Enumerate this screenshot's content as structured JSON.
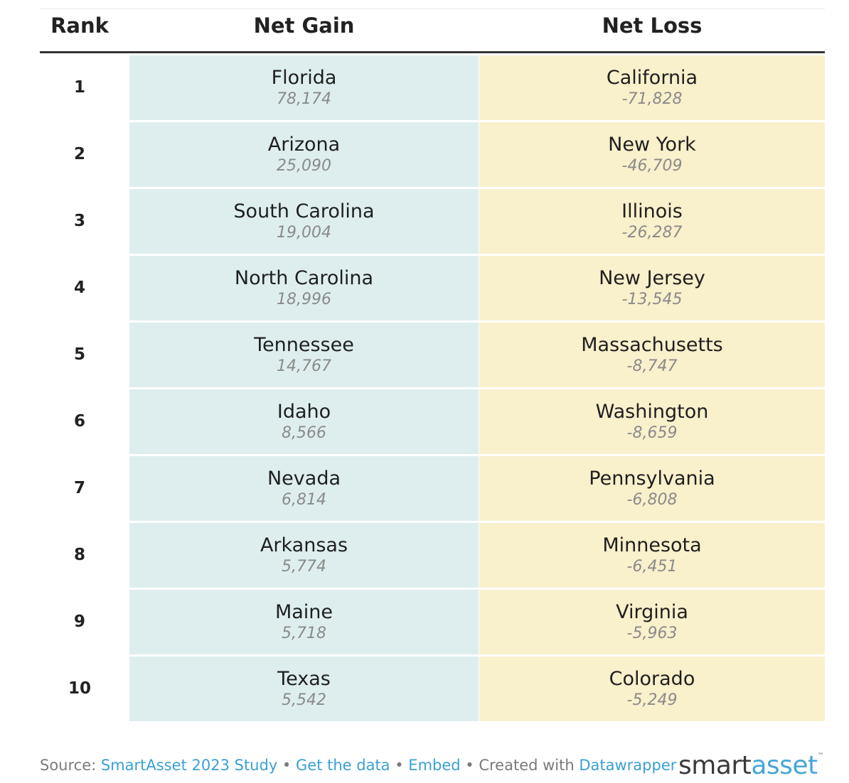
{
  "chart_data": {
    "type": "table",
    "columns": [
      "Rank",
      "Net Gain",
      "Net Loss"
    ],
    "rows": [
      {
        "rank": "1",
        "gain_state": "Florida",
        "gain_value": "78,174",
        "loss_state": "California",
        "loss_value": "-71,828"
      },
      {
        "rank": "2",
        "gain_state": "Arizona",
        "gain_value": "25,090",
        "loss_state": "New York",
        "loss_value": "-46,709"
      },
      {
        "rank": "3",
        "gain_state": "South Carolina",
        "gain_value": "19,004",
        "loss_state": "Illinois",
        "loss_value": "-26,287"
      },
      {
        "rank": "4",
        "gain_state": "North Carolina",
        "gain_value": "18,996",
        "loss_state": "New Jersey",
        "loss_value": "-13,545"
      },
      {
        "rank": "5",
        "gain_state": "Tennessee",
        "gain_value": "14,767",
        "loss_state": "Massachusetts",
        "loss_value": "-8,747"
      },
      {
        "rank": "6",
        "gain_state": "Idaho",
        "gain_value": "8,566",
        "loss_state": "Washington",
        "loss_value": "-8,659"
      },
      {
        "rank": "7",
        "gain_state": "Nevada",
        "gain_value": "6,814",
        "loss_state": "Pennsylvania",
        "loss_value": "-6,808"
      },
      {
        "rank": "8",
        "gain_state": "Arkansas",
        "gain_value": "5,774",
        "loss_state": "Minnesota",
        "loss_value": "-6,451"
      },
      {
        "rank": "9",
        "gain_state": "Maine",
        "gain_value": "5,718",
        "loss_state": "Virginia",
        "loss_value": "-5,963"
      },
      {
        "rank": "10",
        "gain_state": "Texas",
        "gain_value": "5,542",
        "loss_state": "Colorado",
        "loss_value": "-5,249"
      }
    ]
  },
  "colors": {
    "gain_bg": "#deeeef",
    "loss_bg": "#f9f0cc",
    "link": "#3aa0d4",
    "logo_accent": "#45a6d8"
  },
  "footer": {
    "source_label": "Source: ",
    "source_link": "SmartAsset 2023 Study",
    "sep1": " • ",
    "data_link": "Get the data",
    "sep2": " • ",
    "embed_link": "Embed",
    "created_label": " • Created with ",
    "tool_link": "Datawrapper"
  },
  "logo": {
    "part1": "smart",
    "part2": "asset",
    "trademark": "™"
  }
}
